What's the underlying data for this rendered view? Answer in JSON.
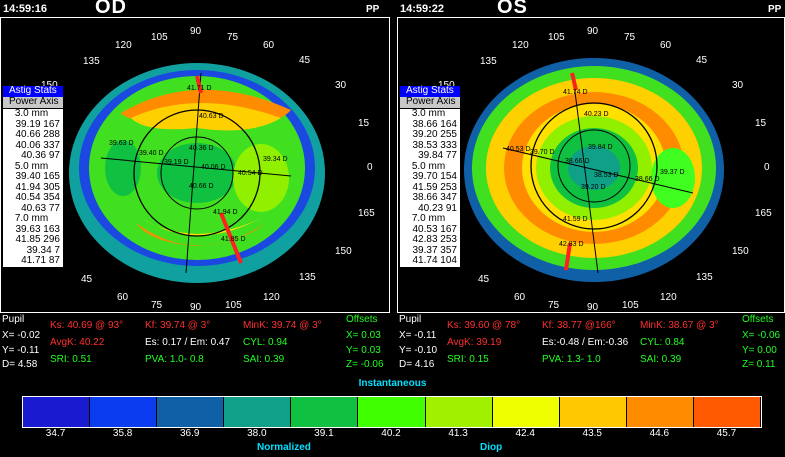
{
  "od": {
    "time": "14:59:16",
    "eye": "OD",
    "pp": "PP",
    "astig": {
      "header1": "Astig Stats",
      "header2": "Power Axis",
      "groups": [
        {
          "mm": "3.0 mm",
          "rows": [
            "39.19 167",
            "40.66 288",
            "40.06 337",
            "40.36  97"
          ]
        },
        {
          "mm": "5.0 mm",
          "rows": [
            "39.40 165",
            "41.94 305",
            "40.54 354",
            "40.63  77"
          ]
        },
        {
          "mm": "7.0 mm",
          "rows": [
            "39.63 163",
            "41.85 296",
            "39.34   7",
            "41.71  87"
          ]
        }
      ]
    },
    "map_labels": [
      "41.71 D",
      "40.63 D",
      "39.63 D",
      "39.40 D",
      "40.36 D",
      "39.19 D",
      "40.06 D",
      "40.54 D",
      "39.34 D",
      "40.66 D",
      "41.94 D",
      "41.85 D"
    ],
    "angles": [
      "90",
      "105",
      "75",
      "120",
      "60",
      "135",
      "45",
      "150",
      "30",
      "15",
      "0",
      "165",
      "150",
      "135",
      "120",
      "105",
      "90",
      "75",
      "60",
      "45"
    ],
    "stats": {
      "pupil": "Pupil",
      "x": "X= -0.02",
      "y": "Y= -0.11",
      "d": "D=  4.58",
      "ks": "Ks: 40.69 @ 93°",
      "kf": "Kf: 39.74 @  3°",
      "mink": "MinK: 39.74 @  3°",
      "avgk": "AvgK: 40.22",
      "es": "Es: 0.17 / Em: 0.47",
      "cyl": "CYL:  0.94",
      "sri": "SRI: 0.51",
      "pva": "PVA:  1.0-  0.8",
      "sai": "SAI: 0.39",
      "offsets": "Offsets",
      "ox": "X=  0.03",
      "oy": "Y=  0.03",
      "oz": "Z= -0.06"
    }
  },
  "os": {
    "time": "14:59:22",
    "eye": "OS",
    "pp": "PP",
    "astig": {
      "header1": "Astig Stats",
      "header2": "Power Axis",
      "groups": [
        {
          "mm": "3.0 mm",
          "rows": [
            "38.66 164",
            "39.20 255",
            "38.53 333",
            "39.84  77"
          ]
        },
        {
          "mm": "5.0 mm",
          "rows": [
            "39.70 154",
            "41.59 253",
            "38.66 347",
            "40.23  91"
          ]
        },
        {
          "mm": "7.0 mm",
          "rows": [
            "40.53 167",
            "42.83 253",
            "39.37 357",
            "41.74 104"
          ]
        }
      ]
    },
    "map_labels": [
      "41.74 D",
      "40.23 D",
      "40.53 D",
      "39.70 D",
      "38.66 D",
      "38.53 D",
      "39.84 D",
      "39.37 D",
      "39.20 D",
      "38.66 D",
      "41.59 D",
      "42.83 D"
    ],
    "stats": {
      "pupil": "Pupil",
      "x": "X= -0.11",
      "y": "Y= -0.10",
      "d": "D=  4.16",
      "ks": "Ks: 39.60 @ 78°",
      "kf": "Kf: 38.77 @166°",
      "mink": "MinK: 38.67 @  3°",
      "avgk": "AvgK: 39.19",
      "es": "Es:-0.48 / Em:-0.36",
      "cyl": "CYL:  0.84",
      "sri": "SRI: 0.15",
      "pva": "PVA:  1.3-  1.0",
      "sai": "SAI: 0.39",
      "offsets": "Offsets",
      "ox": "X= -0.06",
      "oy": "Y=  0.00",
      "oz": "Z=  0.11"
    }
  },
  "scale": {
    "title": "Instantaneous",
    "mode": "Normalized",
    "unit": "Diop",
    "ticks": [
      "34.7",
      "35.8",
      "36.9",
      "38.0",
      "39.1",
      "40.2",
      "41.3",
      "42.4",
      "43.5",
      "44.6",
      "45.7"
    ],
    "colors": [
      "#1a1ad0",
      "#0c3cf0",
      "#1060a8",
      "#10a088",
      "#10c040",
      "#40ff00",
      "#a0f000",
      "#f0ff00",
      "#ffc800",
      "#ff8c00",
      "#ff5a00"
    ]
  }
}
